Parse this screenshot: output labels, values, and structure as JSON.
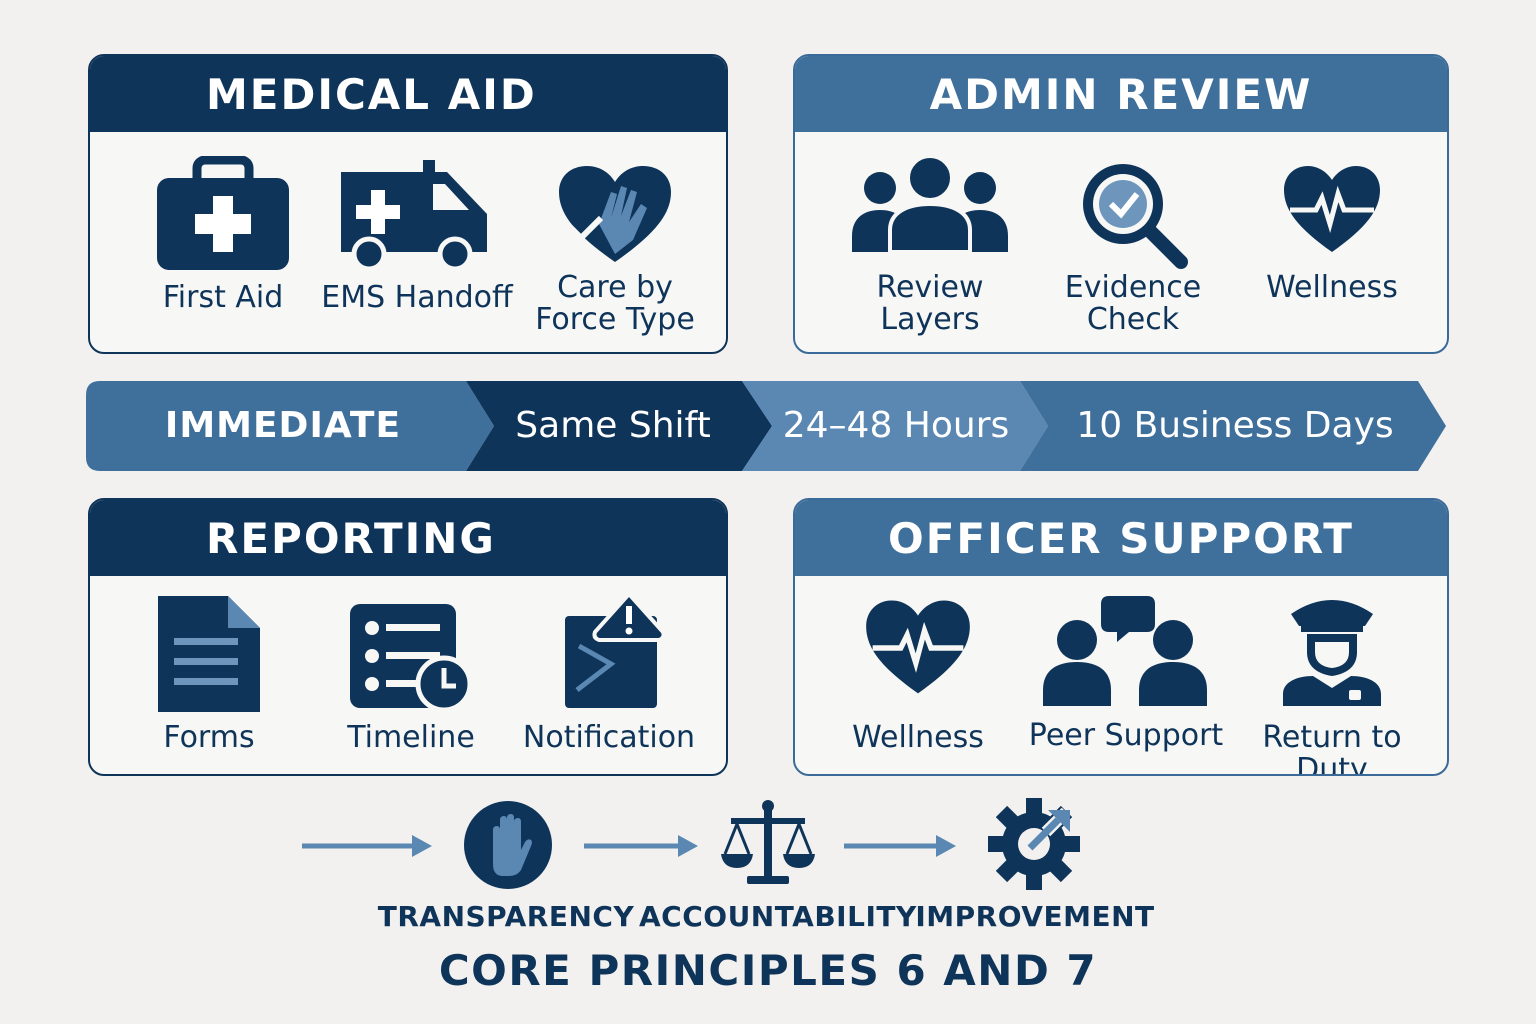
{
  "panels": {
    "medical_aid": {
      "title": "MEDICAL AID",
      "items": [
        {
          "label": "First Aid",
          "icon": "first-aid-kit-icon"
        },
        {
          "label": "EMS Handoff",
          "icon": "ambulance-icon"
        },
        {
          "label": "Care by\nForce Type",
          "icon": "heart-hand-icon"
        }
      ]
    },
    "admin_review": {
      "title": "ADMIN REVIEW",
      "items": [
        {
          "label": "Review\nLayers",
          "icon": "people-group-icon"
        },
        {
          "label": "Evidence\nCheck",
          "icon": "magnifier-check-icon"
        },
        {
          "label": "Wellness",
          "icon": "heart-pulse-icon"
        }
      ]
    },
    "reporting": {
      "title": "REPORTING",
      "items": [
        {
          "label": "Forms",
          "icon": "document-icon"
        },
        {
          "label": "Timeline",
          "icon": "checklist-clock-icon"
        },
        {
          "label": "Notification",
          "icon": "envelope-alert-icon"
        }
      ]
    },
    "officer_support": {
      "title": "OFFICER SUPPORT",
      "items": [
        {
          "label": "Wellness",
          "icon": "heart-pulse-icon"
        },
        {
          "label": "Peer Support",
          "icon": "peer-chat-icon"
        },
        {
          "label": "Return to\nDuty",
          "icon": "police-officer-icon"
        }
      ]
    }
  },
  "timeline": {
    "steps": [
      "IMMEDIATE",
      "Same Shift",
      "24–48 Hours",
      "10 Business Days"
    ]
  },
  "principles": {
    "items": [
      {
        "label": "TRANSPARENCY",
        "icon": "raised-hand-icon"
      },
      {
        "label": "ACCOUNTABILITY",
        "icon": "scales-icon"
      },
      {
        "label": "IMPROVEMENT",
        "icon": "gear-arrow-icon"
      }
    ],
    "title": "CORE PRINCIPLES 6 AND 7"
  },
  "colors": {
    "navy": "#0f3459",
    "steel": "#3f6f9b",
    "light_steel": "#5a88b3",
    "background": "#f2f1ef"
  }
}
